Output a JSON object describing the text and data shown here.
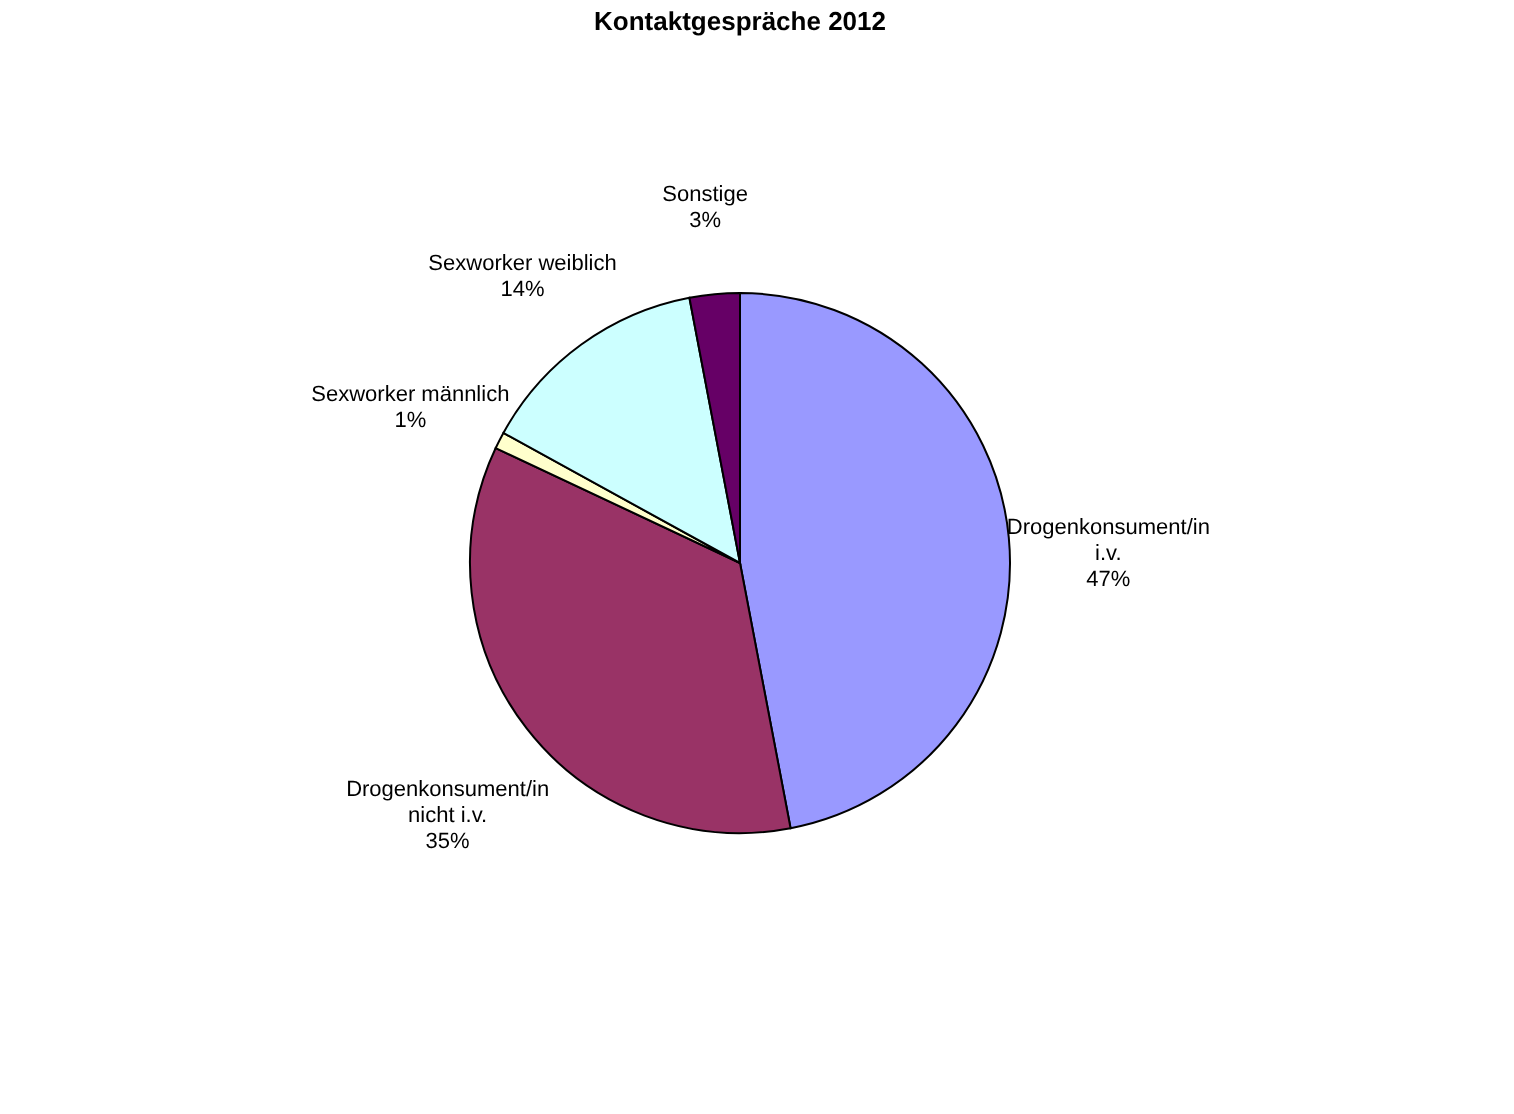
{
  "chart_data": {
    "type": "pie",
    "title": "Kontaktgespräche 2012",
    "categories": [
      "Drogenkonsument/in i.v.",
      "Drogenkonsument/in nicht i.v.",
      "Sexworker männlich",
      "Sexworker weiblich",
      "Sonstige"
    ],
    "values": [
      47,
      35,
      1,
      14,
      3
    ],
    "value_labels": [
      "47%",
      "35%",
      "1%",
      "14%",
      "3%"
    ],
    "colors": [
      "#9999ff",
      "#993366",
      "#ffffcc",
      "#ccffff",
      "#660066"
    ],
    "legend": false
  }
}
